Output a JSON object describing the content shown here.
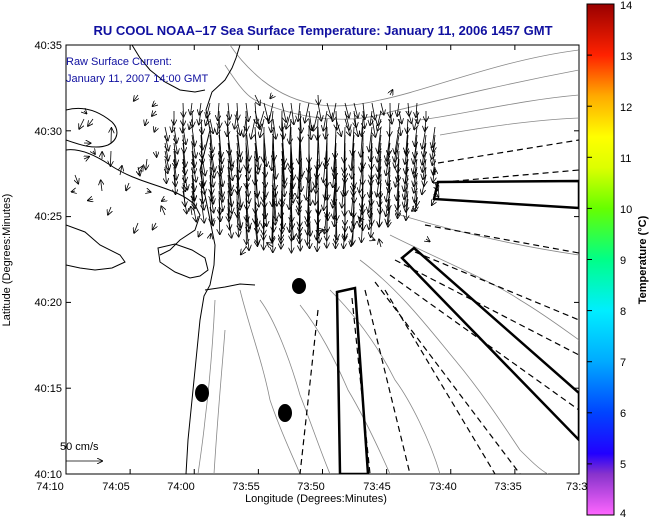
{
  "title": "RU COOL  NOAA–17  Sea Surface Temperature:  January 11, 2006 1457 GMT",
  "legend": {
    "line1": "Raw Surface Current:",
    "line2": "January 11, 2007 14:00 GMT",
    "scale_label": "50 cm/s"
  },
  "chart_data": {
    "type": "map",
    "xlabel": "Longitude (Degrees:Minutes)",
    "ylabel": "Latitude (Degrees:Minutes)",
    "x_ticks": [
      "74:10",
      "74:05",
      "74:00",
      "73:55",
      "73:50",
      "73:45",
      "73:40",
      "73:35",
      "73:3"
    ],
    "y_ticks": [
      "40:35",
      "40:30",
      "40:25",
      "40:20",
      "40:15",
      "40:10"
    ],
    "xlim": [
      "74:10",
      "73:30"
    ],
    "ylim": [
      "40:10",
      "40:35"
    ],
    "colorbar": {
      "label": "Temperature (°C)",
      "ticks": [
        "4",
        "5",
        "6",
        "7",
        "8",
        "9",
        "10",
        "11",
        "12",
        "13",
        "14"
      ],
      "range": [
        4,
        14
      ],
      "colors": [
        "#ff66ff",
        "#4422cc",
        "#0000ff",
        "#00aaff",
        "#00ffff",
        "#00ff66",
        "#88ff00",
        "#ffff00",
        "#ffaa00",
        "#ff0000",
        "#aa0000"
      ]
    },
    "vector_scale_cm_s": 50
  }
}
